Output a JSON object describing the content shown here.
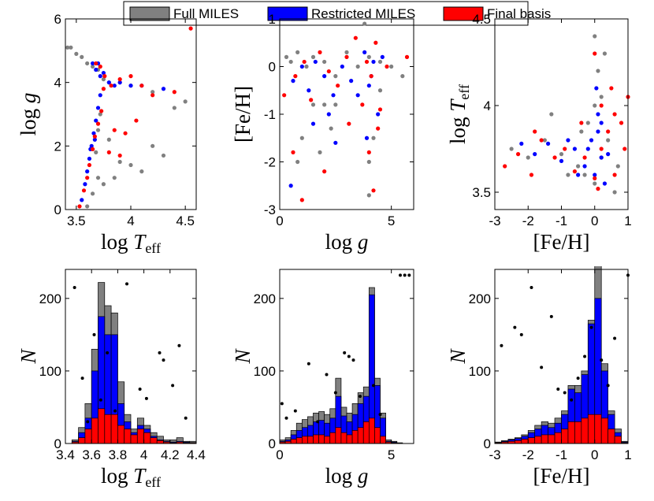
{
  "chart_data": [
    {
      "type": "scatter",
      "xlim": [
        3.4,
        4.6
      ],
      "ylim": [
        0,
        6
      ],
      "xticks": [
        3.5,
        4,
        4.5
      ],
      "yticks": [
        0,
        2,
        4,
        6
      ],
      "xlabel": {
        "pre": "log ",
        "sym": "T",
        "sub": "eff"
      },
      "ylabel": {
        "pre": "log ",
        "sym": "g"
      },
      "series": [
        {
          "name": "Full MILES",
          "color": "#808080",
          "x": [
            3.42,
            3.45,
            3.5,
            3.55,
            3.6,
            3.65,
            3.7,
            3.75,
            3.8,
            3.9,
            4.0,
            4.2,
            4.4,
            4.5,
            3.6,
            3.65,
            3.7,
            3.75,
            3.85,
            3.9,
            4.0,
            4.1,
            4.2,
            4.3,
            3.7,
            3.8,
            3.68,
            3.72
          ],
          "y": [
            5.1,
            5.1,
            4.9,
            4.8,
            4.6,
            4.5,
            4.4,
            4.1,
            4.0,
            4.0,
            3.9,
            3.7,
            3.2,
            3.4,
            0.1,
            0.5,
            1.0,
            0.8,
            1.0,
            1.5,
            1.4,
            1.2,
            2.0,
            1.7,
            2.5,
            2.2,
            1.8,
            3.0
          ]
        },
        {
          "name": "Restricted MILES",
          "color": "#0000ff",
          "x": [
            3.55,
            3.58,
            3.6,
            3.62,
            3.64,
            3.66,
            3.68,
            3.7,
            3.72,
            3.68,
            3.7,
            3.75,
            3.8,
            3.85,
            3.9,
            4.0,
            4.1,
            4.3,
            3.65,
            3.72,
            3.63,
            3.67
          ],
          "y": [
            0.3,
            0.8,
            1.2,
            1.6,
            2.0,
            2.4,
            2.8,
            3.2,
            3.6,
            4.4,
            4.6,
            4.3,
            4.0,
            3.9,
            4.0,
            3.9,
            3.9,
            3.8,
            4.6,
            4.2,
            1.9,
            2.2
          ]
        },
        {
          "name": "Final basis",
          "color": "#ff0000",
          "x": [
            3.53,
            3.57,
            3.6,
            3.62,
            3.65,
            3.67,
            3.7,
            3.73,
            3.68,
            3.72,
            3.76,
            3.82,
            3.9,
            4.0,
            4.1,
            4.2,
            4.4,
            4.55,
            3.8,
            3.85,
            3.95,
            3.9,
            3.75,
            4.05
          ],
          "y": [
            0.1,
            0.6,
            1.0,
            1.4,
            1.9,
            2.3,
            2.7,
            3.1,
            4.6,
            4.5,
            4.2,
            3.9,
            4.1,
            4.2,
            3.9,
            3.6,
            3.7,
            5.7,
            1.8,
            2.5,
            2.4,
            1.7,
            3.8,
            2.8
          ]
        }
      ]
    },
    {
      "type": "scatter",
      "xlim": [
        0,
        6
      ],
      "ylim": [
        -3,
        1
      ],
      "xticks": [
        0,
        5
      ],
      "yticks": [
        -3,
        -2,
        -1,
        0,
        1
      ],
      "xlabel": {
        "pre": "log ",
        "sym": "g"
      },
      "ylabel": {
        "pre": "[Fe/H]"
      },
      "series": [
        {
          "color": "#808080",
          "x": [
            0.3,
            0.5,
            0.8,
            1.2,
            1.5,
            2.0,
            2.5,
            3.0,
            3.5,
            4.0,
            4.5,
            5.0,
            5.5,
            1.5,
            2.0,
            2.5,
            1.0,
            1.8,
            2.3,
            4.0,
            4.2,
            4.5,
            0.8,
            3.8,
            4.0
          ],
          "y": [
            0.2,
            0.1,
            0.3,
            0,
            0.2,
            0.1,
            -0.2,
            0.3,
            0,
            0.2,
            0.1,
            0,
            -0.2,
            -0.8,
            -0.8,
            -0.8,
            -1.5,
            -1.8,
            -1.3,
            -2.0,
            -1.5,
            -0.5,
            -2.0,
            0.9,
            -2.7
          ]
        },
        {
          "color": "#0000ff",
          "x": [
            0.6,
            1.0,
            1.3,
            1.6,
            2.0,
            2.4,
            2.8,
            3.2,
            3.5,
            3.8,
            4.0,
            4.2,
            4.4,
            3.9,
            2.5,
            1.5,
            0.5,
            4.6,
            2.2,
            4.1
          ],
          "y": [
            -0.3,
            0,
            -0.5,
            0.1,
            -0.2,
            -0.6,
            0,
            -0.3,
            -0.6,
            0.3,
            -0.4,
            0.1,
            -1.0,
            -1.5,
            -1.6,
            -1.2,
            -2.5,
            0.2,
            -1.0,
            -0.2
          ]
        },
        {
          "color": "#ff0000",
          "x": [
            0.2,
            0.7,
            1.1,
            1.4,
            1.8,
            2.2,
            2.6,
            3.0,
            3.4,
            3.7,
            3.9,
            4.1,
            4.3,
            4.5,
            4.0,
            4.2,
            3.1,
            2.0,
            1.0,
            5.7,
            4.8,
            0.6,
            4.4
          ],
          "y": [
            -0.6,
            -0.2,
            0.1,
            -0.7,
            0.3,
            -0.1,
            -0.4,
            0.2,
            0.6,
            -0.8,
            0.1,
            -0.2,
            0.5,
            -0.9,
            -1.8,
            -2.6,
            -1.2,
            -2.2,
            -2.8,
            0.2,
            0,
            -1.8,
            -1.3
          ]
        }
      ]
    },
    {
      "type": "scatter",
      "xlim": [
        -3,
        1
      ],
      "ylim": [
        3.4,
        4.5
      ],
      "xticks": [
        -3,
        -2,
        -1,
        0,
        1
      ],
      "yticks": [
        3.5,
        4,
        4.5
      ],
      "xlabel": {
        "pre": "[Fe/H]"
      },
      "ylabel": {
        "pre": "log ",
        "sym": "T",
        "sub": "eff"
      },
      "series": [
        {
          "color": "#808080",
          "x": [
            -2.5,
            -2.0,
            -1.5,
            -1.0,
            -0.5,
            -0.3,
            0,
            0.2,
            0.4,
            0.6,
            -0.2,
            0,
            0.1,
            0,
            0.3,
            -0.8,
            -0.4,
            0.7,
            -1.3,
            0.2
          ],
          "y": [
            3.75,
            3.7,
            3.8,
            3.72,
            3.65,
            3.6,
            3.55,
            3.7,
            3.8,
            3.5,
            3.9,
            4.0,
            4.2,
            4.4,
            4.3,
            3.6,
            3.85,
            3.65,
            3.95,
            4.05
          ]
        },
        {
          "color": "#0000ff",
          "x": [
            -2.2,
            -1.8,
            -1.4,
            -1.0,
            -0.6,
            -0.3,
            -0.1,
            0,
            0.1,
            0.2,
            0.3,
            -0.2,
            0.1,
            0.05,
            0.2,
            -0.5,
            -0.8,
            0.4
          ],
          "y": [
            3.78,
            3.72,
            3.78,
            3.68,
            3.75,
            3.65,
            3.8,
            3.6,
            3.85,
            3.7,
            3.55,
            3.75,
            3.95,
            4.1,
            3.9,
            3.6,
            3.8,
            3.72
          ]
        },
        {
          "color": "#ff0000",
          "x": [
            -2.7,
            -2.3,
            -1.9,
            -1.6,
            -1.2,
            -0.9,
            -0.6,
            -0.3,
            0,
            0.2,
            0.4,
            0.6,
            0.8,
            1.0,
            0.5,
            0.2,
            -0.4,
            0.6,
            0.1,
            -1.8,
            0.9,
            0
          ],
          "y": [
            3.65,
            3.72,
            3.6,
            3.8,
            3.7,
            3.75,
            3.62,
            3.7,
            3.58,
            3.75,
            3.85,
            3.6,
            3.9,
            4.05,
            4.1,
            4.0,
            3.9,
            3.95,
            3.52,
            3.85,
            3.75,
            4.3
          ]
        }
      ]
    },
    {
      "type": "histogram",
      "xlim": [
        3.4,
        4.4
      ],
      "ylim": [
        0,
        240
      ],
      "xticks": [
        3.4,
        3.6,
        3.8,
        4,
        4.2,
        4.4
      ],
      "yticks": [
        0,
        100,
        200
      ],
      "xlabel": {
        "pre": "log ",
        "sym": "T",
        "sub": "eff"
      },
      "ylabel": {
        "sym": "N"
      },
      "bins": [
        3.45,
        3.5,
        3.55,
        3.6,
        3.65,
        3.7,
        3.75,
        3.8,
        3.85,
        3.9,
        3.95,
        4.0,
        4.05,
        4.1,
        4.15,
        4.2,
        4.25,
        4.3,
        4.35,
        4.4
      ],
      "series": [
        {
          "color": "#808080",
          "values": [
            5,
            22,
            55,
            130,
            222,
            190,
            180,
            85,
            40,
            20,
            35,
            25,
            15,
            10,
            5,
            5,
            8,
            3,
            3
          ]
        },
        {
          "color": "#0000ff",
          "values": [
            3,
            15,
            35,
            100,
            175,
            150,
            150,
            55,
            30,
            15,
            25,
            20,
            10,
            5,
            3,
            2,
            3,
            2,
            1
          ]
        },
        {
          "color": "#ff0000",
          "values": [
            2,
            8,
            20,
            35,
            48,
            40,
            40,
            25,
            20,
            12,
            20,
            15,
            8,
            4,
            2,
            1,
            2,
            1,
            1
          ]
        }
      ],
      "points": {
        "color": "#000000",
        "x": [
          3.47,
          3.53,
          3.57,
          3.62,
          3.67,
          3.72,
          3.78,
          3.87,
          3.97,
          4.02,
          4.12,
          4.15,
          4.22,
          4.27,
          4.32
        ],
        "y": [
          215,
          90,
          30,
          150,
          60,
          125,
          45,
          220,
          75,
          62,
          125,
          115,
          80,
          135,
          35
        ]
      }
    },
    {
      "type": "histogram",
      "xlim": [
        0,
        6
      ],
      "ylim": [
        0,
        240
      ],
      "xticks": [
        0,
        5
      ],
      "yticks": [
        0,
        100,
        200
      ],
      "xlabel": {
        "pre": "log ",
        "sym": "g"
      },
      "ylabel": {
        "sym": "N"
      },
      "bins": [
        0,
        0.25,
        0.5,
        0.75,
        1,
        1.25,
        1.5,
        1.75,
        2,
        2.25,
        2.5,
        2.75,
        3,
        3.25,
        3.5,
        3.75,
        4,
        4.25,
        4.5,
        4.75,
        5,
        5.25,
        5.5,
        5.75
      ],
      "series": [
        {
          "color": "#808080",
          "values": [
            5,
            8,
            18,
            28,
            33,
            37,
            42,
            44,
            40,
            48,
            90,
            50,
            42,
            55,
            70,
            78,
            215,
            90,
            42,
            5,
            3,
            1,
            0
          ]
        },
        {
          "color": "#0000ff",
          "values": [
            3,
            5,
            12,
            18,
            22,
            25,
            30,
            32,
            28,
            35,
            65,
            38,
            30,
            40,
            55,
            65,
            205,
            80,
            35,
            3,
            2,
            0,
            0
          ]
        },
        {
          "color": "#ff0000",
          "values": [
            2,
            3,
            6,
            8,
            10,
            10,
            12,
            12,
            10,
            15,
            22,
            15,
            12,
            18,
            22,
            30,
            35,
            22,
            10,
            2,
            1,
            0,
            0
          ]
        }
      ],
      "points": {
        "color": "#000000",
        "x": [
          0.1,
          0.3,
          0.7,
          1.3,
          1.7,
          2.1,
          2.5,
          2.9,
          3.1,
          3.3,
          3.6,
          4.2,
          4.5,
          5.4,
          5.6,
          5.8
        ],
        "y": [
          55,
          35,
          45,
          110,
          30,
          95,
          70,
          125,
          120,
          115,
          65,
          80,
          40,
          232,
          232,
          232
        ]
      }
    },
    {
      "type": "histogram",
      "xlim": [
        -3,
        1
      ],
      "ylim": [
        0,
        240
      ],
      "xticks": [
        -3,
        -2,
        -1,
        0,
        1
      ],
      "yticks": [
        0,
        100,
        200
      ],
      "xlabel": {
        "pre": "[Fe/H]"
      },
      "ylabel": {
        "sym": "N"
      },
      "bins": [
        -3,
        -2.8,
        -2.6,
        -2.4,
        -2.2,
        -2,
        -1.8,
        -1.6,
        -1.4,
        -1.2,
        -1,
        -0.8,
        -0.6,
        -0.4,
        -0.2,
        0,
        0.2,
        0.4,
        0.6,
        0.8,
        1
      ],
      "series": [
        {
          "color": "#808080",
          "values": [
            2,
            4,
            6,
            8,
            12,
            18,
            25,
            30,
            28,
            35,
            45,
            80,
            80,
            100,
            170,
            250,
            110,
            45,
            20,
            3
          ]
        },
        {
          "color": "#0000ff",
          "values": [
            1,
            3,
            5,
            7,
            10,
            15,
            20,
            25,
            22,
            28,
            40,
            75,
            70,
            95,
            165,
            200,
            100,
            40,
            15,
            2
          ]
        },
        {
          "color": "#ff0000",
          "values": [
            1,
            2,
            3,
            4,
            6,
            8,
            10,
            12,
            12,
            15,
            20,
            30,
            30,
            35,
            40,
            40,
            35,
            20,
            10,
            1
          ]
        }
      ],
      "points": {
        "color": "#000000",
        "x": [
          -2.8,
          -2.4,
          -2.2,
          -1.9,
          -1.6,
          -1.3,
          -1.1,
          -0.9,
          -0.7,
          -0.5,
          -0.3,
          -0.1,
          0.2,
          0.4,
          0.6,
          1.0
        ],
        "y": [
          135,
          160,
          150,
          215,
          105,
          175,
          75,
          70,
          60,
          90,
          120,
          160,
          115,
          80,
          145,
          232
        ]
      }
    }
  ]
}
